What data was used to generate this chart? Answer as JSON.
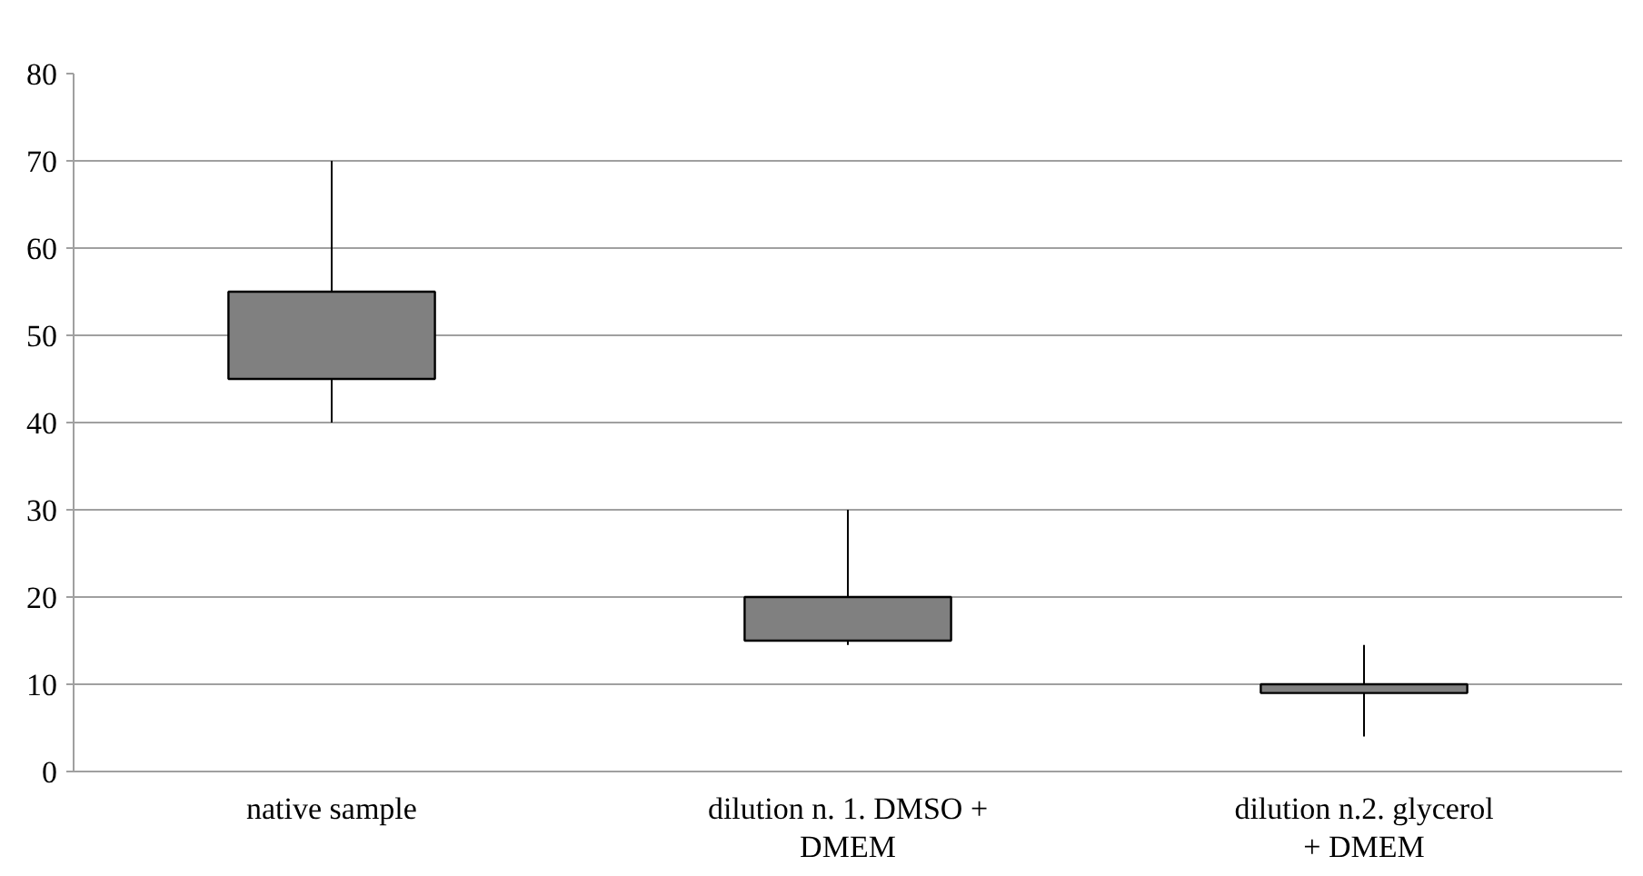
{
  "chart_data": {
    "type": "candlestick",
    "categories": [
      "native sample",
      "dilution n. 1. DMSO + DMEM",
      "dilution n.2. glycerol + DMEM"
    ],
    "ohlc": [
      [
        45,
        70,
        40,
        55
      ],
      [
        15,
        30,
        14.5,
        20
      ],
      [
        9,
        14.5,
        4,
        10
      ]
    ],
    "color": "#808080",
    "ylim": [
      0,
      80
    ],
    "yticks": [
      0,
      10,
      20,
      30,
      40,
      50,
      60,
      70,
      80
    ],
    "grid": "y"
  }
}
